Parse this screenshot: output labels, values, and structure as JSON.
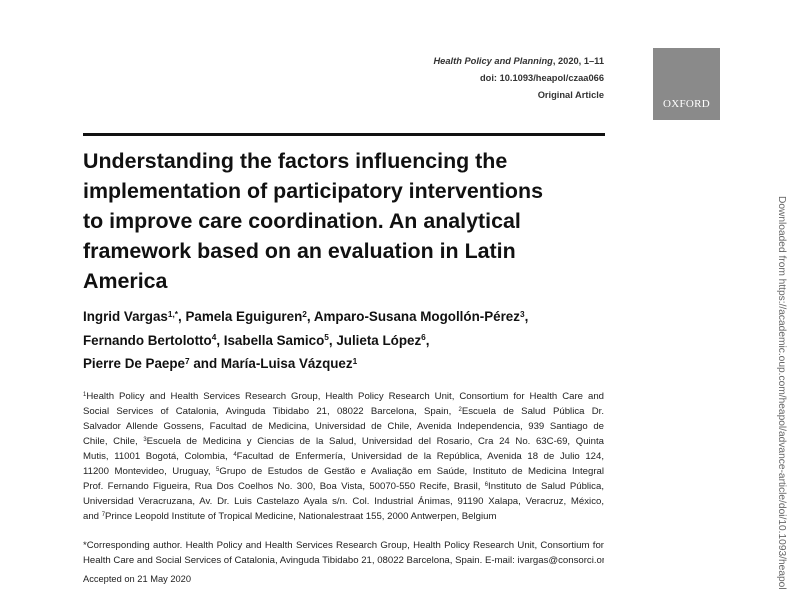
{
  "header": {
    "journal": "Health Policy and Planning",
    "citation": ", 2020, 1–11",
    "doi": "doi: 10.1093/heapol/czaa066",
    "article_type": "Original Article"
  },
  "logo": {
    "text": "OXFORD",
    "color": "#8a8a8a"
  },
  "title_lines": [
    "Understanding the factors influencing the",
    "implementation of participatory interventions",
    "to improve care coordination. An analytical",
    "framework based on an evaluation in Latin",
    "America"
  ],
  "authors_lines": [
    [
      {
        "t": "Ingrid Vargas"
      },
      {
        "s": "1,*"
      },
      {
        "t": ", Pamela Eguiguren"
      },
      {
        "s": "2"
      },
      {
        "t": ", Amparo-Susana Mogollón-Pérez"
      },
      {
        "s": "3"
      },
      {
        "t": ","
      }
    ],
    [
      {
        "t": "Fernando Bertolotto"
      },
      {
        "s": "4"
      },
      {
        "t": ", Isabella Samico"
      },
      {
        "s": "5"
      },
      {
        "t": ", Julieta López"
      },
      {
        "s": "6"
      },
      {
        "t": ","
      }
    ],
    [
      {
        "t": "Pierre De Paepe"
      },
      {
        "s": "7"
      },
      {
        "t": " and María-Luisa Vázquez"
      },
      {
        "s": "1"
      }
    ]
  ],
  "affiliations_lines": [
    [
      {
        "s": "1"
      },
      {
        "t": "Health Policy and Health Services Research Group, Health Policy Research Unit, Consortium for Health Care and"
      }
    ],
    [
      {
        "t": "Social Services of Catalonia, Avinguda Tibidabo 21, 08022 Barcelona, Spain, "
      },
      {
        "s": "2"
      },
      {
        "t": "Escuela de Salud Pública Dr."
      }
    ],
    [
      {
        "t": "Salvador Allende Gossens, Facultad de Medicina, Universidad de Chile, Avenida Independencia, 939 Santiago de"
      }
    ],
    [
      {
        "t": "Chile, Chile, "
      },
      {
        "s": "3"
      },
      {
        "t": "Escuela de Medicina y Ciencias de la Salud, Universidad del Rosario, Cra 24 No. 63C-69, Quinta"
      }
    ],
    [
      {
        "t": "Mutis, 11001 Bogotá, Colombia, "
      },
      {
        "s": "4"
      },
      {
        "t": "Facultad de Enfermería, Universidad de la República, Avenida 18 de Julio 124,"
      }
    ],
    [
      {
        "t": "11200 Montevideo, Uruguay, "
      },
      {
        "s": "5"
      },
      {
        "t": "Grupo de Estudos de Gestão e Avaliação em Saúde, Instituto de Medicina Integral"
      }
    ],
    [
      {
        "t": "Prof. Fernando Figueira, Rua Dos Coelhos No. 300, Boa Vista, 50070-550 Recife, Brasil, "
      },
      {
        "s": "6"
      },
      {
        "t": "Instituto de Salud Pública,"
      }
    ],
    [
      {
        "t": "Universidad Veracruzana, Av. Dr. Luis Castelazo Ayala s/n. Col. Industrial Ánimas, 91190 Xalapa, Veracruz, México,"
      }
    ],
    [
      {
        "t": "and "
      },
      {
        "s": "7"
      },
      {
        "t": "Prince Leopold Institute of Tropical Medicine, Nationalestraat 155, 2000 Antwerpen, Belgium"
      }
    ]
  ],
  "corresponding_lines": [
    [
      {
        "t": "*Corresponding author. Health Policy and Health Services Research Group, Health Policy Research Unit, Consortium for"
      }
    ],
    [
      {
        "t": "Health Care and Social Services of Catalonia, Avinguda Tibidabo 21, 08022 Barcelona, Spain. E-mail: ivargas@consorci.org"
      }
    ]
  ],
  "accepted": "Accepted on 21 May 2020",
  "side_note": "Downloaded from https://academic.oup.com/heapol/advance-article/doi/10.1093/heapol"
}
